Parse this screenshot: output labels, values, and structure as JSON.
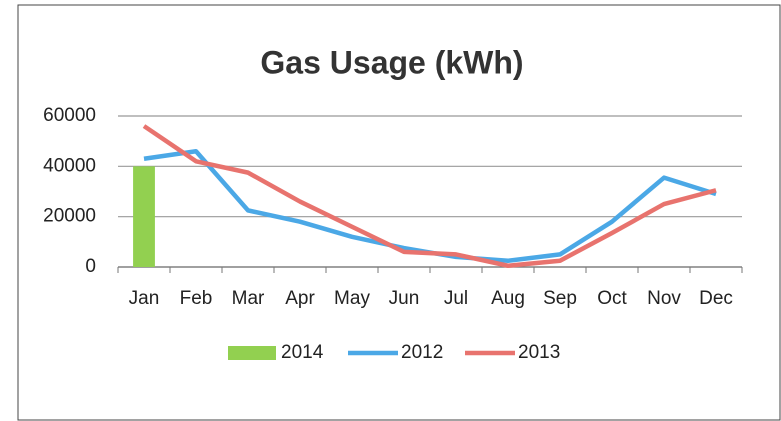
{
  "chart_data": {
    "type": "bar",
    "title": "Gas Usage (kWh)",
    "categories": [
      "Jan",
      "Feb",
      "Mar",
      "Apr",
      "May",
      "Jun",
      "Jul",
      "Aug",
      "Sep",
      "Oct",
      "Nov",
      "Dec"
    ],
    "series": [
      {
        "name": "2014",
        "type": "bar",
        "color": "#92d050",
        "values": [
          40000,
          null,
          null,
          null,
          null,
          null,
          null,
          null,
          null,
          null,
          null,
          null
        ]
      },
      {
        "name": "2012",
        "type": "line",
        "color": "#4ba8e6",
        "values": [
          43000,
          46000,
          22500,
          18000,
          12000,
          7500,
          4000,
          2500,
          5000,
          18000,
          35500,
          29000
        ]
      },
      {
        "name": "2013",
        "type": "line",
        "color": "#e8736e",
        "values": [
          56000,
          42000,
          37500,
          26000,
          16000,
          6000,
          5000,
          500,
          2500,
          13500,
          25000,
          30500
        ]
      }
    ],
    "ylim": [
      0,
      60000
    ],
    "yticks": [
      0,
      20000,
      40000,
      60000
    ],
    "grid": true,
    "legend": "bottom"
  }
}
